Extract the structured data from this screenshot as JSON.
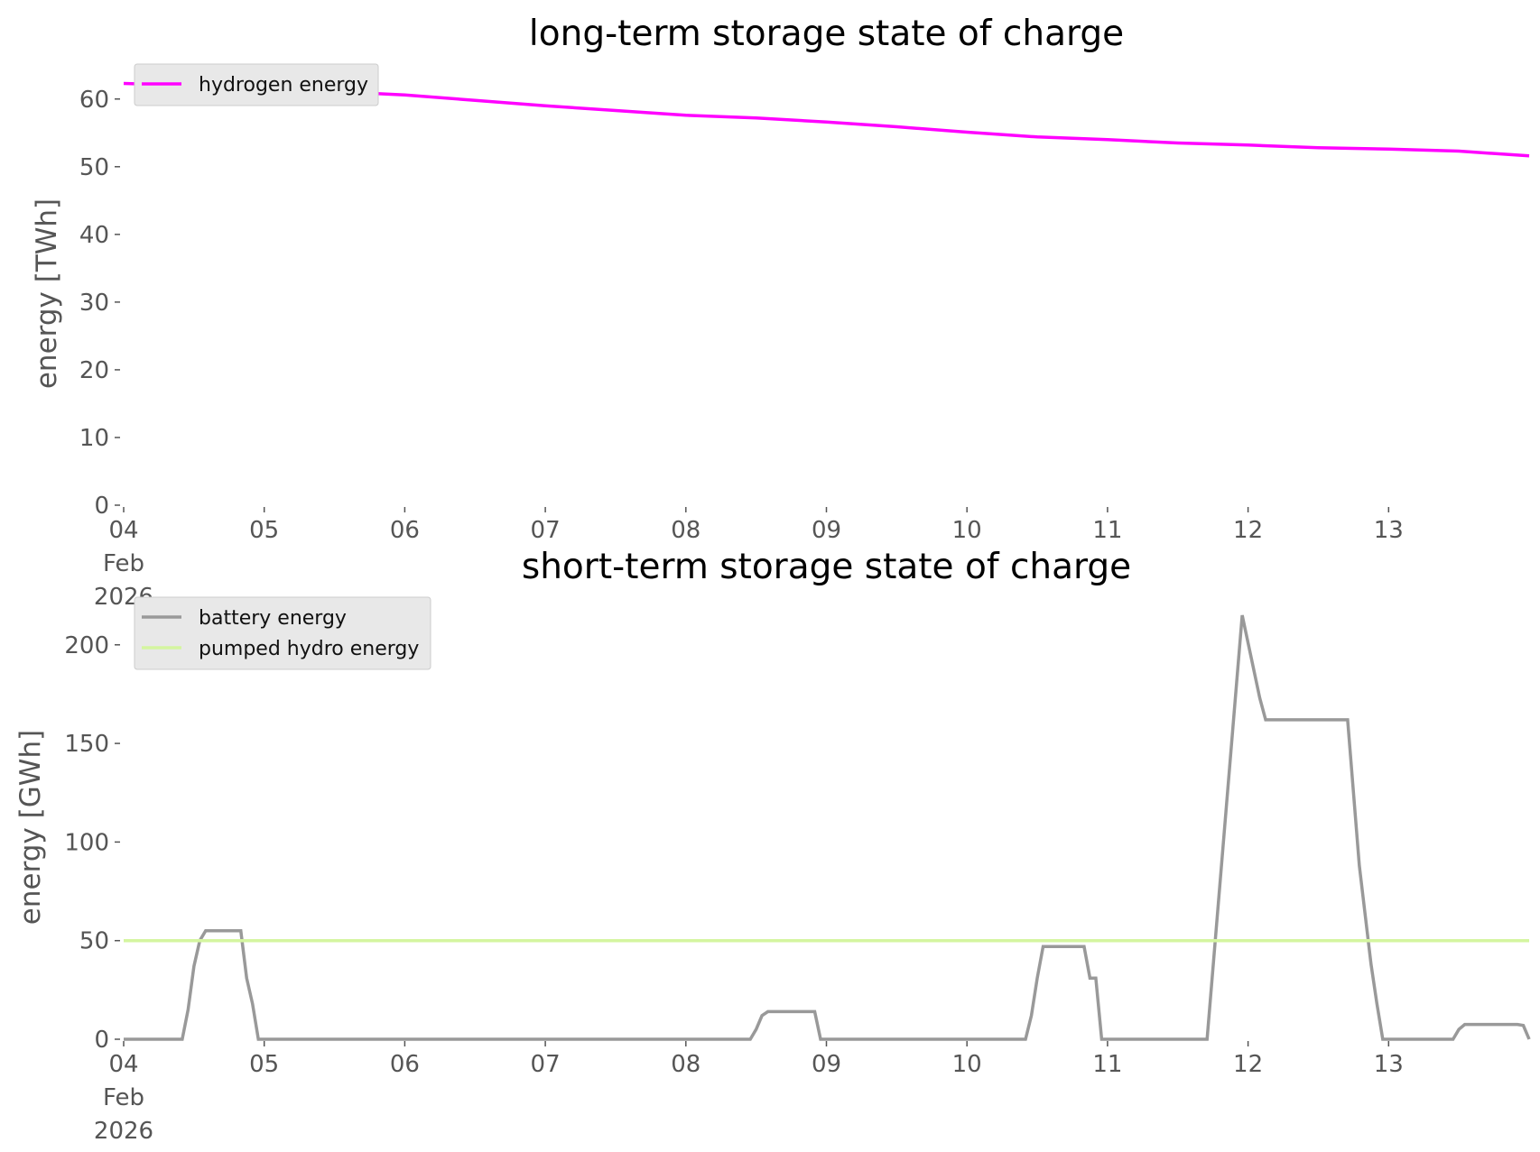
{
  "chart_data": [
    {
      "type": "line",
      "title": "long-term storage state of charge",
      "ylabel": "energy [TWh]",
      "legend": "upper left",
      "x": [
        "2026-02-04T00:00",
        "2026-02-04T12:00",
        "2026-02-05T00:00",
        "2026-02-05T12:00",
        "2026-02-06T00:00",
        "2026-02-06T12:00",
        "2026-02-07T00:00",
        "2026-02-07T12:00",
        "2026-02-08T00:00",
        "2026-02-08T12:00",
        "2026-02-09T00:00",
        "2026-02-09T12:00",
        "2026-02-10T00:00",
        "2026-02-10T12:00",
        "2026-02-11T00:00",
        "2026-02-11T12:00",
        "2026-02-12T00:00",
        "2026-02-12T12:00",
        "2026-02-13T00:00",
        "2026-02-13T12:00",
        "2026-02-14T00:00"
      ],
      "series": [
        {
          "name": "hydrogen energy",
          "color": "#ff00ff",
          "values": [
            62.3,
            62.0,
            61.6,
            61.1,
            60.6,
            59.8,
            59.0,
            58.3,
            57.6,
            57.2,
            56.6,
            55.9,
            55.1,
            54.4,
            54.0,
            53.5,
            53.2,
            52.8,
            52.6,
            52.3,
            51.6
          ]
        }
      ],
      "xlim": [
        "2026-02-04T00:00",
        "2026-02-14T00:00"
      ],
      "xticks": [
        {
          "value": "2026-02-04T00:00",
          "label": "04\nFeb\n2026"
        },
        {
          "value": "2026-02-05T00:00",
          "label": "05"
        },
        {
          "value": "2026-02-06T00:00",
          "label": "06"
        },
        {
          "value": "2026-02-07T00:00",
          "label": "07"
        },
        {
          "value": "2026-02-08T00:00",
          "label": "08"
        },
        {
          "value": "2026-02-09T00:00",
          "label": "09"
        },
        {
          "value": "2026-02-10T00:00",
          "label": "10"
        },
        {
          "value": "2026-02-11T00:00",
          "label": "11"
        },
        {
          "value": "2026-02-12T00:00",
          "label": "12"
        },
        {
          "value": "2026-02-13T00:00",
          "label": "13"
        }
      ],
      "ylim": [
        0,
        62.5
      ],
      "yticks": [
        0,
        10,
        20,
        30,
        40,
        50,
        60
      ]
    },
    {
      "type": "line",
      "title": "short-term storage state of charge",
      "ylabel": "energy [GWh]",
      "legend": "upper left",
      "x": [
        "2026-02-04T00:00",
        "2026-02-04T10:00",
        "2026-02-04T11:00",
        "2026-02-04T12:00",
        "2026-02-04T13:00",
        "2026-02-04T14:00",
        "2026-02-04T20:00",
        "2026-02-04T21:00",
        "2026-02-04T22:00",
        "2026-02-04T23:00",
        "2026-02-08T11:00",
        "2026-02-08T12:00",
        "2026-02-08T13:00",
        "2026-02-08T14:00",
        "2026-02-08T22:00",
        "2026-02-08T23:00",
        "2026-02-10T10:00",
        "2026-02-10T11:00",
        "2026-02-10T12:00",
        "2026-02-10T13:00",
        "2026-02-10T20:00",
        "2026-02-10T21:00",
        "2026-02-10T22:00",
        "2026-02-10T23:00",
        "2026-02-11T17:00",
        "2026-02-11T23:00",
        "2026-02-12T02:00",
        "2026-02-12T03:00",
        "2026-02-12T17:00",
        "2026-02-12T19:00",
        "2026-02-12T21:00",
        "2026-02-12T22:00",
        "2026-02-12T23:00",
        "2026-02-13T11:00",
        "2026-02-13T12:00",
        "2026-02-13T13:00",
        "2026-02-13T22:00",
        "2026-02-13T23:00",
        "2026-02-14T00:00"
      ],
      "series": [
        {
          "name": "battery energy",
          "color": "#999999",
          "values": [
            0,
            0,
            15,
            37,
            50,
            55,
            55,
            31,
            18,
            0,
            0,
            5,
            12,
            14,
            14,
            0,
            0,
            12,
            31,
            47,
            47,
            31,
            31,
            0,
            0,
            215,
            173,
            162,
            162,
            88,
            38,
            18,
            0,
            0,
            5,
            7.5,
            7.5,
            7,
            0
          ]
        },
        {
          "name": "pumped hydro energy",
          "color": "#d4f5a0",
          "values": [
            50,
            50,
            50,
            50,
            50,
            50,
            50,
            50,
            50,
            50,
            50,
            50,
            50,
            50,
            50,
            50,
            50,
            50,
            50,
            50,
            50,
            50,
            50,
            50,
            50,
            50,
            50,
            50,
            50,
            50,
            50,
            50,
            50,
            50,
            50,
            50,
            50,
            50,
            50
          ]
        }
      ],
      "xlim": [
        "2026-02-04T00:00",
        "2026-02-14T00:00"
      ],
      "xticks": [
        {
          "value": "2026-02-04T00:00",
          "label": "04\nFeb\n2026"
        },
        {
          "value": "2026-02-05T00:00",
          "label": "05"
        },
        {
          "value": "2026-02-06T00:00",
          "label": "06"
        },
        {
          "value": "2026-02-07T00:00",
          "label": "07"
        },
        {
          "value": "2026-02-08T00:00",
          "label": "08"
        },
        {
          "value": "2026-02-09T00:00",
          "label": "09"
        },
        {
          "value": "2026-02-10T00:00",
          "label": "10"
        },
        {
          "value": "2026-02-11T00:00",
          "label": "11"
        },
        {
          "value": "2026-02-12T00:00",
          "label": "12"
        },
        {
          "value": "2026-02-13T00:00",
          "label": "13"
        }
      ],
      "ylim": [
        0,
        215
      ],
      "yticks": [
        0,
        50,
        100,
        150,
        200
      ]
    }
  ]
}
